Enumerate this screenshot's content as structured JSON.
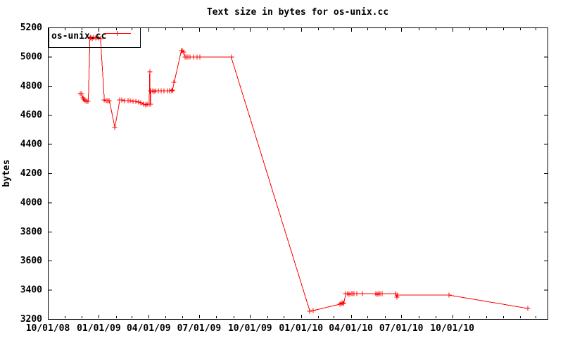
{
  "window": {
    "background": "#ffffff"
  },
  "chart_data": {
    "type": "line",
    "title": "Text size in bytes for os-unix.cc",
    "xlabel": "",
    "ylabel": "bytes",
    "grid": false,
    "ylim": [
      3200,
      5200
    ],
    "ytick_step": 200,
    "y_tick_labels": [
      "3200",
      "3400",
      "3600",
      "3800",
      "4000",
      "4200",
      "4400",
      "4600",
      "4800",
      "5000",
      "5200"
    ],
    "xlim_dates": [
      "10/01/08",
      "03/22/11"
    ],
    "x_major_tick_dates": [
      "10/01/08",
      "01/01/09",
      "04/01/09",
      "07/01/09",
      "10/01/09",
      "01/01/10",
      "04/01/10",
      "07/01/10",
      "10/01/10"
    ],
    "x_minor_tick_unit": "month",
    "legend": {
      "position": "top-left",
      "boxed": true,
      "entries": [
        {
          "label": "os-unix.cc",
          "color": "#ff0000",
          "marker": "plus"
        }
      ]
    },
    "colors": {
      "line": "#ff0000",
      "axis": "#000000",
      "text": "#000000",
      "background": "#ffffff"
    },
    "series": [
      {
        "name": "os-unix.cc",
        "color": "#ff0000",
        "marker": "plus",
        "points": [
          [
            "11/29/08",
            4746
          ],
          [
            "12/01/08",
            4746
          ],
          [
            "12/03/08",
            4717
          ],
          [
            "12/05/08",
            4708
          ],
          [
            "12/07/08",
            4698
          ],
          [
            "12/10/08",
            4694
          ],
          [
            "12/13/08",
            4694
          ],
          [
            "12/16/08",
            5127
          ],
          [
            "12/18/08",
            5132
          ],
          [
            "12/20/08",
            5122
          ],
          [
            "12/23/08",
            5132
          ],
          [
            "12/26/08",
            5127
          ],
          [
            "12/29/08",
            5132
          ],
          [
            "01/01/09",
            5127
          ],
          [
            "01/04/09",
            5122
          ],
          [
            "01/11/09",
            4703
          ],
          [
            "01/14/09",
            4698
          ],
          [
            "01/17/09",
            4698
          ],
          [
            "01/20/09",
            4698
          ],
          [
            "01/30/09",
            4514
          ],
          [
            "02/08/09",
            4703
          ],
          [
            "02/11/09",
            4703
          ],
          [
            "02/17/09",
            4698
          ],
          [
            "02/23/09",
            4698
          ],
          [
            "02/27/09",
            4698
          ],
          [
            "03/04/09",
            4694
          ],
          [
            "03/09/09",
            4694
          ],
          [
            "03/14/09",
            4689
          ],
          [
            "03/18/09",
            4684
          ],
          [
            "03/23/09",
            4675
          ],
          [
            "03/26/09",
            4670
          ],
          [
            "03/29/09",
            4675
          ],
          [
            "04/02/09",
            4675
          ],
          [
            "04/03/09",
            4896
          ],
          [
            "04/04/09",
            4672
          ],
          [
            "04/05/09",
            4765
          ],
          [
            "04/08/09",
            4765
          ],
          [
            "04/11/09",
            4760
          ],
          [
            "04/14/09",
            4765
          ],
          [
            "04/18/09",
            4765
          ],
          [
            "04/24/09",
            4765
          ],
          [
            "04/29/09",
            4765
          ],
          [
            "05/05/09",
            4765
          ],
          [
            "05/09/09",
            4765
          ],
          [
            "05/12/09",
            4765
          ],
          [
            "05/14/09",
            4770
          ],
          [
            "05/17/09",
            4823
          ],
          [
            "05/30/09",
            5041
          ],
          [
            "06/01/09",
            5041
          ],
          [
            "06/03/09",
            5031
          ],
          [
            "06/06/09",
            4997
          ],
          [
            "06/08/09",
            4997
          ],
          [
            "06/11/09",
            4997
          ],
          [
            "06/15/09",
            4997
          ],
          [
            "06/21/09",
            4997
          ],
          [
            "06/27/09",
            4997
          ],
          [
            "07/03/09",
            4997
          ],
          [
            "08/28/09",
            4997
          ],
          [
            "01/17/10",
            3253
          ],
          [
            "01/23/10",
            3258
          ],
          [
            "03/12/10",
            3301
          ],
          [
            "03/15/10",
            3306
          ],
          [
            "03/17/10",
            3311
          ],
          [
            "03/19/10",
            3306
          ],
          [
            "03/23/10",
            3374
          ],
          [
            "03/26/10",
            3374
          ],
          [
            "03/29/10",
            3369
          ],
          [
            "04/01/10",
            3374
          ],
          [
            "04/04/10",
            3374
          ],
          [
            "04/07/10",
            3374
          ],
          [
            "04/12/10",
            3374
          ],
          [
            "04/22/10",
            3374
          ],
          [
            "05/16/10",
            3374
          ],
          [
            "05/19/10",
            3369
          ],
          [
            "05/21/10",
            3374
          ],
          [
            "05/24/10",
            3374
          ],
          [
            "05/28/10",
            3374
          ],
          [
            "06/21/10",
            3374
          ],
          [
            "06/23/10",
            3350
          ],
          [
            "06/25/10",
            3364
          ],
          [
            "09/25/10",
            3364
          ],
          [
            "02/15/11",
            3272
          ]
        ]
      }
    ]
  }
}
